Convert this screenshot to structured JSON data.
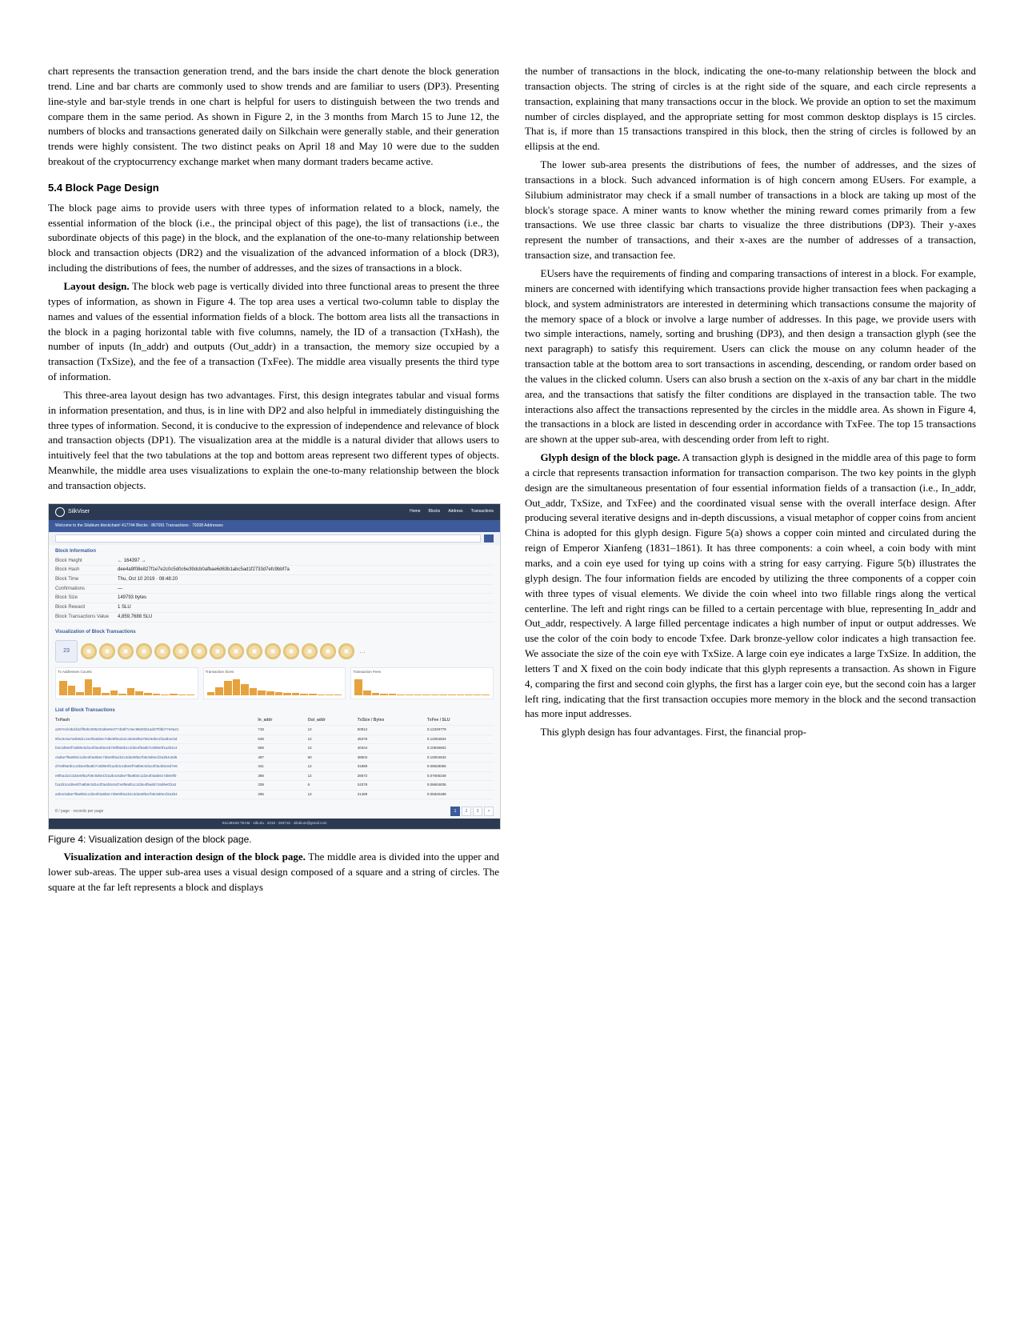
{
  "left": {
    "p1": "chart represents the transaction generation trend, and the bars inside the chart denote the block generation trend. Line and bar charts are commonly used to show trends and are familiar to users (DP3). Presenting line-style and bar-style trends in one chart is helpful for users to distinguish between the two trends and compare them in the same period. As shown in Figure 2, in the 3 months from March 15 to June 12, the numbers of blocks and transactions generated daily on Silkchain were generally stable, and their generation trends were highly consistent. The two distinct peaks on April 18 and May 10 were due to the sudden breakout of the cryptocurrency exchange market when many dormant traders became active.",
    "h54": "5.4   Block Page Design",
    "p2": "The block page aims to provide users with three types of information related to a block, namely, the essential information of the block (i.e., the principal object of this page), the list of transactions (i.e., the subordinate objects of this page) in the block, and the explanation of the one-to-many relationship between block and transaction objects (DR2) and the visualization of the advanced information of a block (DR3), including the distributions of fees, the number of addresses, and the sizes of transactions in a block.",
    "p3_lead": "Layout design.",
    "p3": " The block web page is vertically divided into three functional areas to present the three types of information, as shown in Figure 4. The top area uses a vertical two-column table to display the names and values of the essential information fields of a block. The bottom area lists all the transactions in the block in a paging horizontal table with five columns, namely, the ID of a transaction (TxHash), the number of inputs (In_addr) and outputs (Out_addr) in a transaction, the memory size occupied by a transaction (TxSize), and the fee of a transaction (TxFee). The middle area visually presents the third type of information.",
    "p4": "This three-area layout design has two advantages. First, this design integrates tabular and visual forms in information presentation, and thus, is in line with DP2 and also helpful in immediately distinguishing the three types of information. Second, it is conducive to the expression of independence and relevance of block and transaction objects (DP1). The visualization area at the middle is a natural divider that allows users to intuitively feel that the two tabulations at the top and bottom areas represent two different types of objects. Meanwhile, the middle area uses visualizations to explain the one-to-many relationship between the block and transaction objects.",
    "figcap": "Figure 4: Visualization design of the block page.",
    "p5_lead": "Visualization and interaction design of the block page.",
    "p5": " The middle area is divided into the upper and lower sub-areas. The upper sub-area uses a visual design composed of a square and a string of circles. The square at the far left represents a block and displays"
  },
  "right": {
    "p1": "the number of transactions in the block, indicating the one-to-many relationship between the block and transaction objects. The string of circles is at the right side of the square, and each circle represents a transaction, explaining that many transactions occur in the block. We provide an option to set the maximum number of circles displayed, and the appropriate setting for most common desktop displays is 15 circles. That is, if more than 15 transactions transpired in this block, then the string of circles is followed by an ellipsis at the end.",
    "p2": "The lower sub-area presents the distributions of fees, the number of addresses, and the sizes of transactions in a block. Such advanced information is of high concern among EUsers. For example, a Silubium administrator may check if a small number of transactions in a block are taking up most of the block's storage space. A miner wants to know whether the mining reward comes primarily from a few transactions. We use three classic bar charts to visualize the three distributions (DP3). Their y-axes represent the number of transactions, and their x-axes are the number of addresses of a transaction, transaction size, and transaction fee.",
    "p3": "EUsers have the requirements of finding and comparing transactions of interest in a block. For example, miners are concerned with identifying which transactions provide higher transaction fees when packaging a block, and system administrators are interested in determining which transactions consume the majority of the memory space of a block or involve a large number of addresses. In this page, we provide users with two simple interactions, namely, sorting and brushing (DP3), and then design a transaction glyph (see the next paragraph) to satisfy this requirement. Users can click the mouse on any column header of the transaction table at the bottom area to sort transactions in ascending, descending, or random order based on the values in the clicked column. Users can also brush a section on the x-axis of any bar chart in the middle area, and the transactions that satisfy the filter conditions are displayed in the transaction table. The two interactions also affect the transactions represented by the circles in the middle area. As shown in Figure 4, the transactions in a block are listed in descending order in accordance with TxFee. The top 15 transactions are shown at the upper sub-area, with descending order from left to right.",
    "p4_lead": "Glyph design of the block page.",
    "p4": " A transaction glyph is designed in the middle area of this page to form a circle that represents transaction information for transaction comparison. The two key points in the glyph design are the simultaneous presentation of four essential information fields of a transaction (i.e., In_addr, Out_addr, TxSize, and TxFee) and the coordinated visual sense with the overall interface design. After producing several iterative designs and in-depth discussions, a visual metaphor of copper coins from ancient China is adopted for this glyph design. Figure 5(a) shows a copper coin minted and circulated during the reign of Emperor Xianfeng (1831–1861). It has three components: a coin wheel, a coin body with mint marks, and a coin eye used for tying up coins with a string for easy carrying. Figure 5(b) illustrates the glyph design. The four information fields are encoded by utilizing the three components of a copper coin with three types of visual elements. We divide the coin wheel into two fillable rings along the vertical centerline. The left and right rings can be filled to a certain percentage with blue, representing In_addr and Out_addr, respectively. A large filled percentage indicates a high number of input or output addresses. We use the color of the coin body to encode Txfee. Dark bronze-yellow color indicates a high transaction fee. We associate the size of the coin eye with TxSize. A large coin eye indicates a large TxSize. In addition, the letters T and X fixed on the coin body indicate that this glyph represents a transaction. As shown in Figure 4, comparing the first and second coin glyphs, the first has a larger coin eye, but the second coin has a larger left ring, indicating that the first transaction occupies more memory in the block and the second transaction has more input addresses.",
    "p5": "This glyph design has four advantages. First, the financial prop-"
  },
  "shot": {
    "brand": "SilkViser",
    "nav": [
      "Home",
      "Blocks",
      "Address",
      "Transactions"
    ],
    "banner": "Welcome to the Silubium blockchain! 417744 Blocks · 867091 Transactions · 79208 Addresses",
    "section_info": "Block Information",
    "info_rows": [
      {
        "k": "Block Height",
        "v": "←   164397   →"
      },
      {
        "k": "Block Hash",
        "v": "dee4a9f08e827f1e7e2c0c5d0c6e39dcb0afbae6d63b1abc5ad1f2733d7efc9bbf7a"
      },
      {
        "k": "Block Time",
        "v": "Thu, Oct 10 2019 · 08:48:20"
      },
      {
        "k": "Confirmations",
        "v": "—"
      },
      {
        "k": "Block Size",
        "v": "149793 bytes"
      },
      {
        "k": "Block Reward",
        "v": "1 SLU"
      },
      {
        "k": "Block Transactions Value",
        "v": "4,859,7688 SLU"
      }
    ],
    "section_viz": "Visualization of Block Transactions",
    "tx_count": "23",
    "coin_count": 15,
    "charts": [
      {
        "title": "Tx Addresses Counts",
        "bars": [
          18,
          12,
          4,
          20,
          10,
          3,
          6,
          2,
          9,
          5,
          3,
          2,
          1,
          2,
          1,
          1
        ]
      },
      {
        "title": "Transaction Sizes",
        "bars": [
          4,
          10,
          18,
          20,
          14,
          9,
          6,
          5,
          4,
          3,
          3,
          2,
          2,
          1,
          1,
          1
        ]
      },
      {
        "title": "Transaction Fees",
        "bars": [
          20,
          6,
          3,
          2,
          2,
          1,
          1,
          1,
          1,
          1,
          1,
          1,
          1,
          1,
          1,
          1
        ]
      }
    ],
    "section_list": "List of Block Transactions",
    "thead": [
      "TxHash",
      "In_addr",
      "Out_addr",
      "TxSize / Bytes",
      "TxFee / SLU"
    ],
    "rows": [
      {
        "h": "a257e1b4bd1bcff84b1085234d6e8e3774b6f7c3ec98d32b1ad37f0bb77e9a21",
        "in": "718",
        "out": "12",
        "sz": "50912",
        "fee": "0.12329779"
      },
      {
        "h": "9f1e3c5a7a0b8d1c2e3f4a5b6c7d8e9f0a1b2c3d4e5f6a7b8c9d0e1f2a3b4c5d",
        "in": "638",
        "out": "12",
        "sz": "45376",
        "fee": "0.12054834"
      },
      {
        "h": "b3c4d5e6f7a8b9c0d1e2f3a4b5c6d7e8f9a0b1c2d3e4f5a6b7c8d9e0f1a2b3c4",
        "in": "558",
        "out": "12",
        "sz": "40344",
        "fee": "0.10946802"
      },
      {
        "h": "c5d6e7f8a9b0c1d2e3f4a5b6c7d8e9f0a1b2c3d4e5f6a7b8c9d0e1f2a3b4c5d6",
        "in": "497",
        "out": "60",
        "sz": "38504",
        "fee": "0.10004632"
      },
      {
        "h": "d7e8f9a0b1c2d3e4f5a6b7c8d9e0f1a2b3c4d5e6f7a8b9c0d1e2f3a4b5c6d7e8",
        "in": "441",
        "out": "12",
        "sz": "31880",
        "fee": "0.08628056"
      },
      {
        "h": "e9f0a1b2c3d4e5f6a7b8c9d0e1f2a3b4c5d6e7f8a9b0c1d2e3f4a5b6c7d8e9f0",
        "in": "388",
        "out": "12",
        "sz": "28072",
        "fee": "0.07605348"
      },
      {
        "h": "f1a2b3c4d5e6f7a8b9c0d1e2f3a4b5c6d7e8f9a0b1c2d3e4f5a6b7c8d9e0f1a2",
        "in": "339",
        "out": "6",
        "sz": "24376",
        "fee": "0.06604836"
      },
      {
        "h": "a3b4c5d6e7f8a9b0c1d2e3f4a5b6c7d8e9f0a1b2c3d4e5f6a7b8c9d0e1f2a3b4",
        "in": "296",
        "out": "12",
        "sz": "21480",
        "fee": "0.05820488"
      }
    ],
    "pager_left": "8 / page  ·  records per page",
    "pages": [
      "1",
      "2",
      "3",
      ">"
    ],
    "footer": "SILUBIUM TEAM · silk.slu · 2019 · 283716 · silubium@gmail.com"
  }
}
